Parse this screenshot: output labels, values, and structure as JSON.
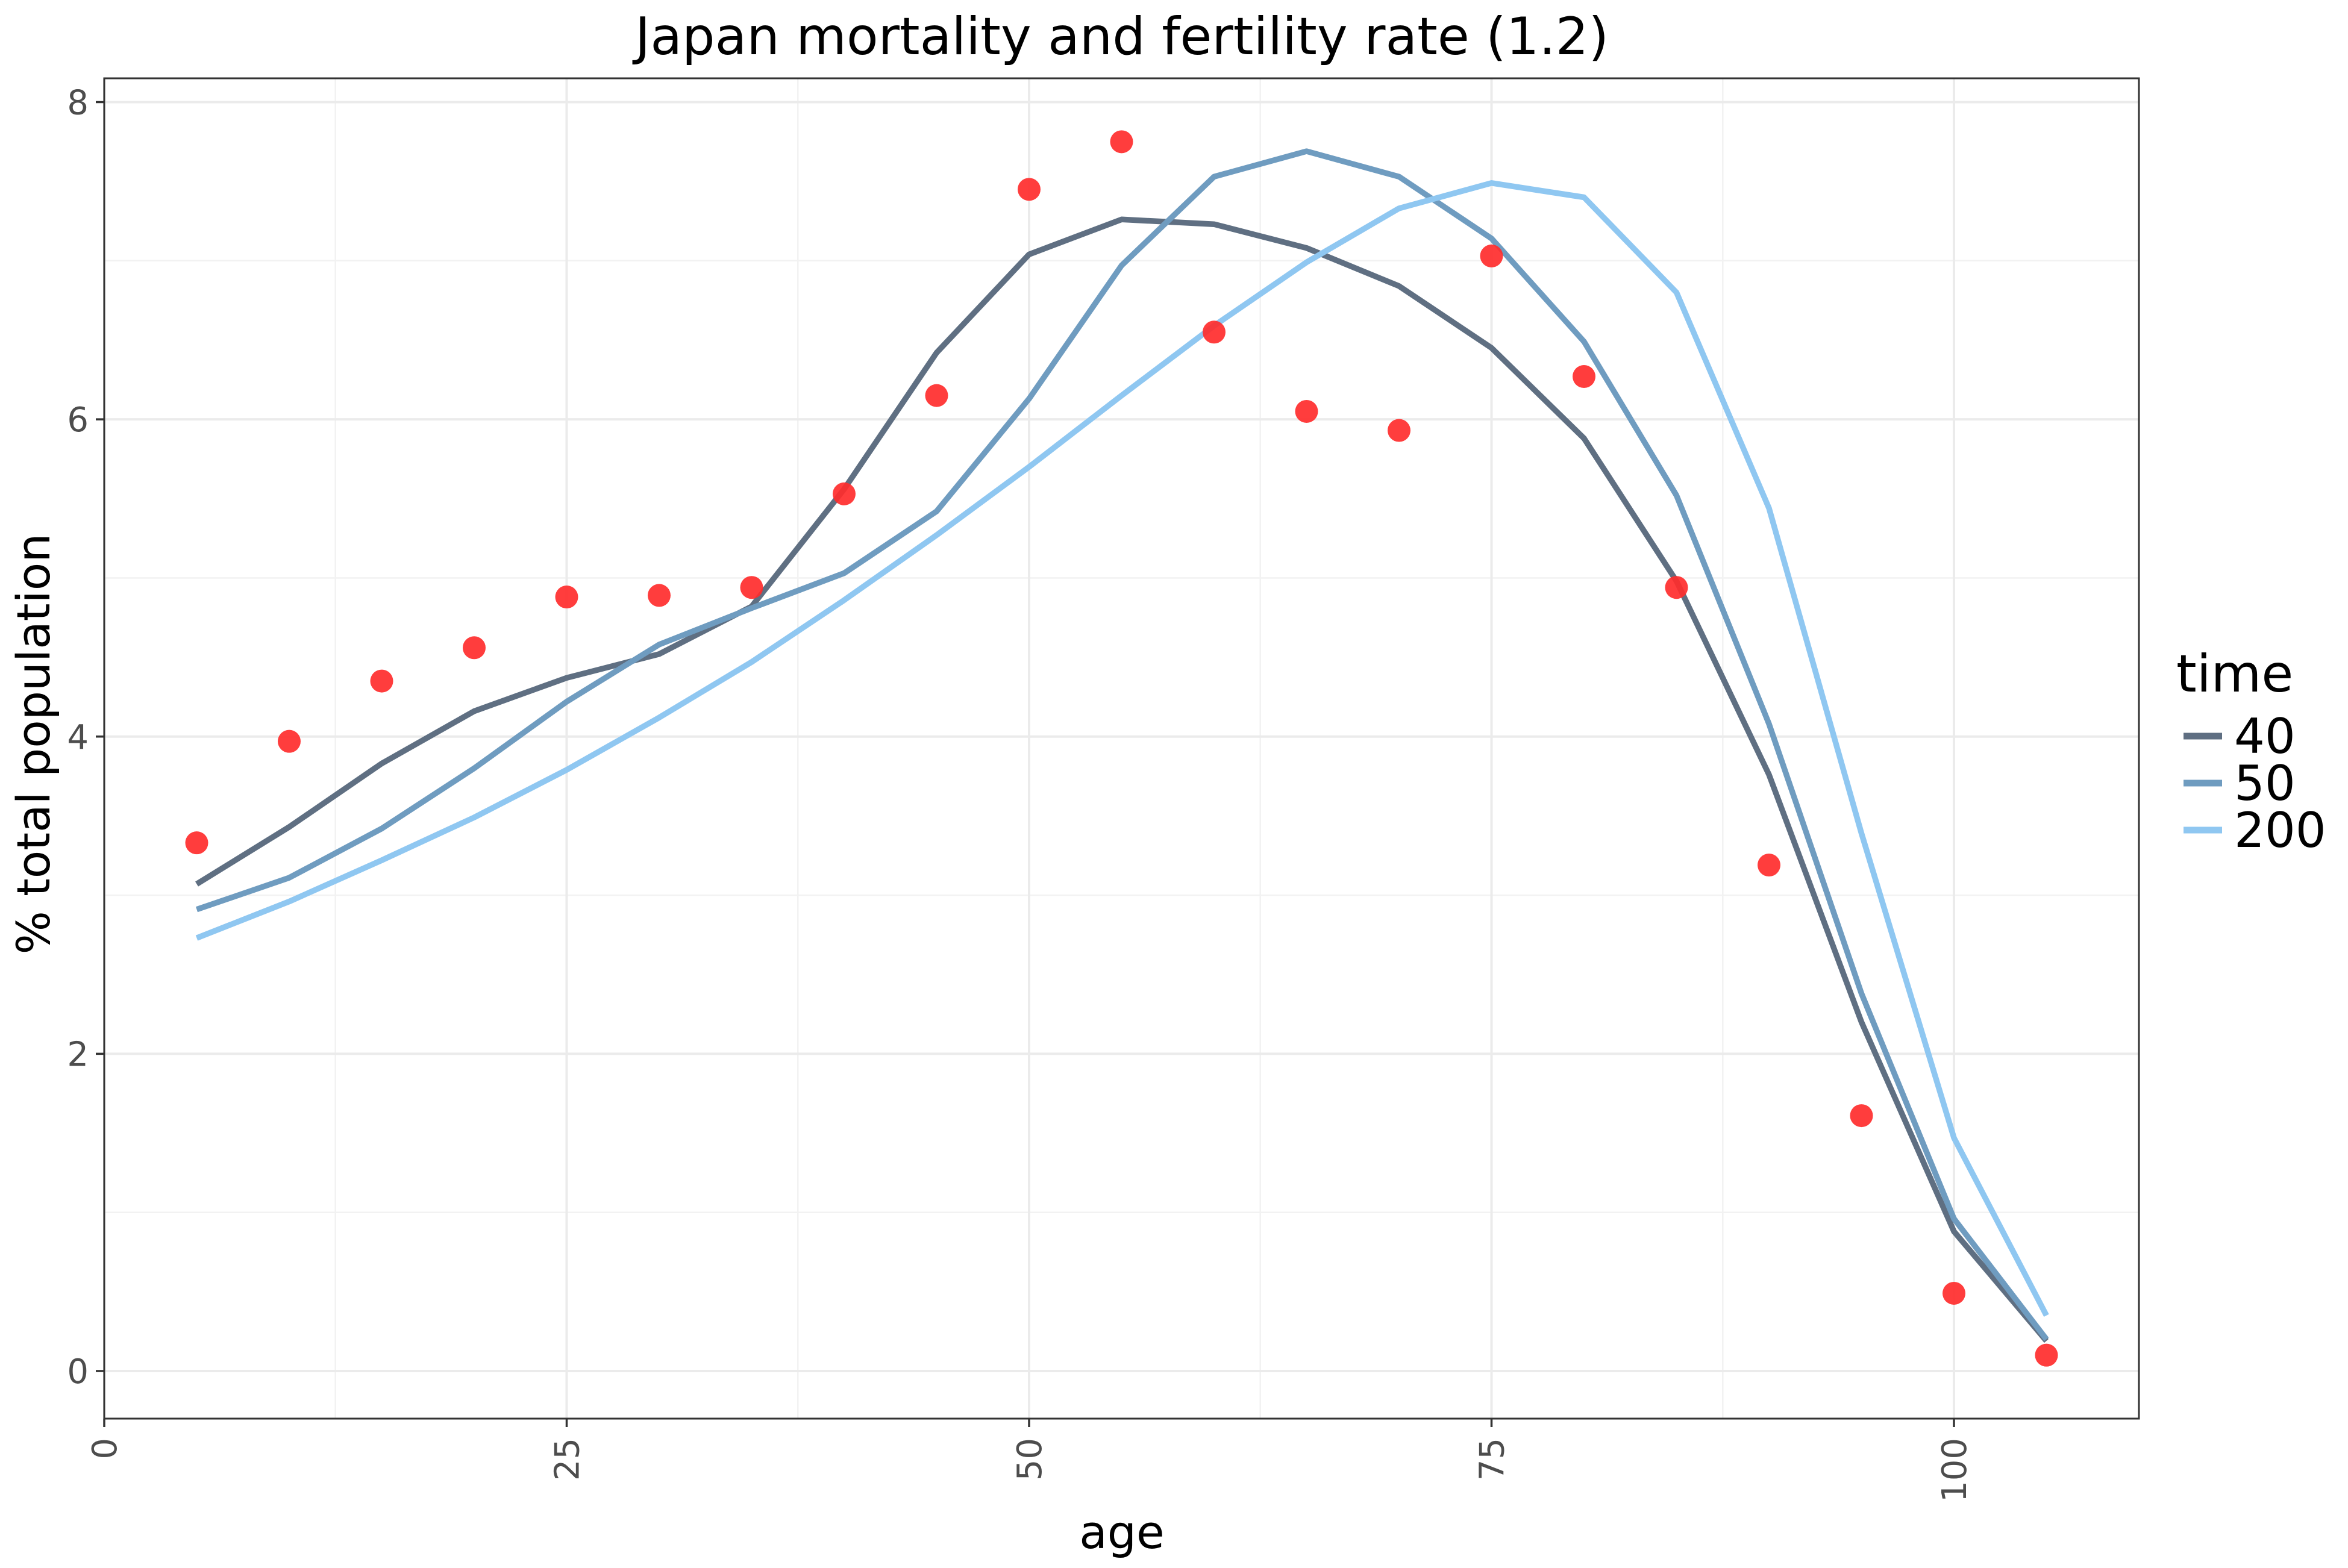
{
  "chart_data": {
    "type": "line",
    "title": "Japan mortality and fertility rate (1.2)",
    "xlabel": "age",
    "ylabel": "% total population",
    "xlim": [
      0,
      110
    ],
    "ylim": [
      -0.3,
      8.15
    ],
    "x_ticks": [
      0,
      25,
      50,
      75,
      100
    ],
    "x_tick_labels": [
      "0",
      "25",
      "50",
      "75",
      "100"
    ],
    "y_ticks": [
      0,
      2,
      4,
      6,
      8
    ],
    "y_tick_labels": [
      "0",
      "2",
      "4",
      "6",
      "8"
    ],
    "grid": true,
    "legend": {
      "title": "time",
      "position": "right"
    },
    "x": [
      5,
      10,
      15,
      20,
      25,
      30,
      35,
      40,
      45,
      50,
      55,
      60,
      65,
      70,
      75,
      80,
      85,
      90,
      95,
      100,
      105
    ],
    "series": [
      {
        "name": "40",
        "color": "#5f6f82",
        "values": [
          3.07,
          3.43,
          3.83,
          4.16,
          4.37,
          4.52,
          4.82,
          5.56,
          6.42,
          7.04,
          7.26,
          7.23,
          7.08,
          6.84,
          6.45,
          5.88,
          4.98,
          3.76,
          2.2,
          0.88,
          0.19
        ]
      },
      {
        "name": "50",
        "color": "#6f9cc0",
        "values": [
          2.91,
          3.11,
          3.42,
          3.8,
          4.22,
          4.58,
          4.81,
          5.03,
          5.42,
          6.13,
          6.97,
          7.53,
          7.69,
          7.53,
          7.14,
          6.49,
          5.52,
          4.08,
          2.38,
          0.96,
          0.2
        ]
      },
      {
        "name": "200",
        "color": "#8fc7f1",
        "values": [
          2.73,
          2.96,
          3.22,
          3.49,
          3.79,
          4.12,
          4.47,
          4.86,
          5.27,
          5.7,
          6.15,
          6.59,
          6.99,
          7.33,
          7.49,
          7.4,
          6.8,
          5.44,
          3.39,
          1.47,
          0.35
        ]
      }
    ],
    "points": {
      "color": "#ff2d2d",
      "x": [
        5,
        10,
        15,
        20,
        25,
        30,
        35,
        40,
        45,
        50,
        55,
        60,
        65,
        70,
        75,
        80,
        85,
        90,
        95,
        100,
        105
      ],
      "y": [
        3.33,
        3.97,
        4.35,
        4.56,
        4.88,
        4.89,
        4.94,
        5.53,
        6.15,
        7.45,
        7.75,
        6.55,
        6.05,
        5.93,
        7.03,
        6.27,
        4.94,
        3.19,
        1.61,
        0.49,
        0.1
      ]
    }
  }
}
